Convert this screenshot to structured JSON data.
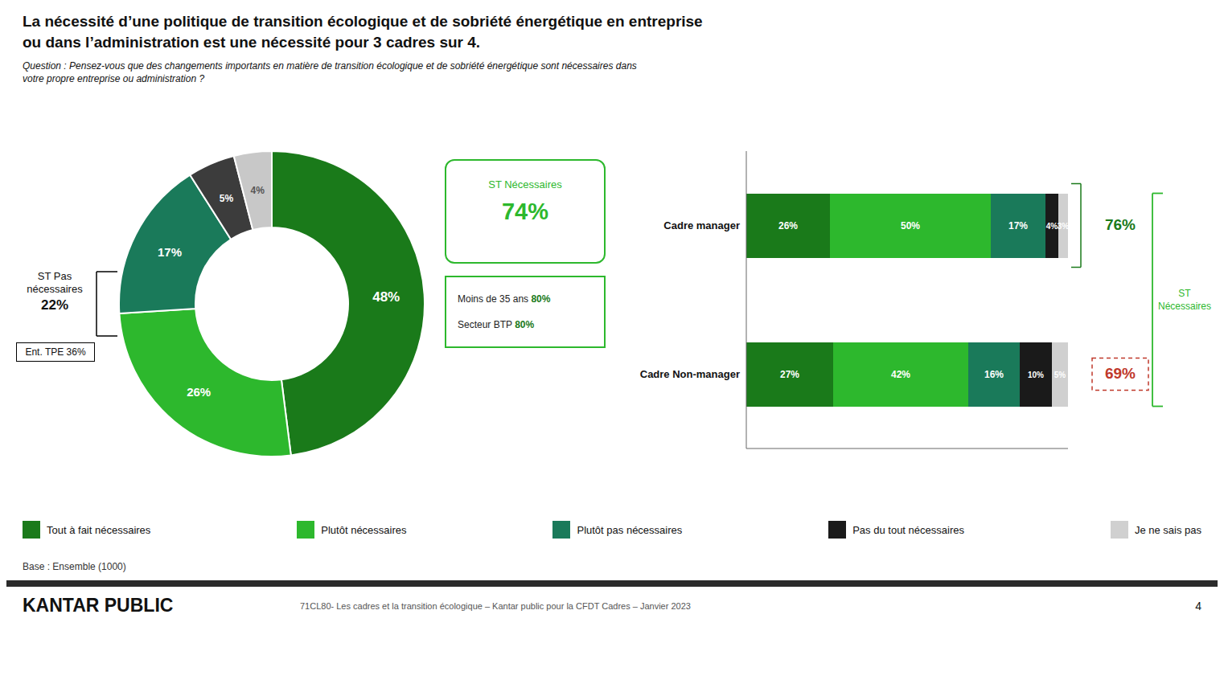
{
  "chart_data": [
    {
      "type": "pie",
      "title": "La nécessité d’une politique de transition écologique et de sobriété énergétique en entreprise\nou dans l’administration est une nécessité pour 3 cadres sur 4.",
      "subtitle": "Question : Pensez-vous que des changements importants en matière de transition écologique et de sobriété énergétique sont nécessaires dans\nvotre propre entreprise ou administration ?",
      "categories": [
        "Tout à fait nécessaires",
        "Plutôt nécessaires",
        "Plutôt pas nécessaires",
        "Pas du tout nécessaires",
        "Je ne sais pas"
      ],
      "values": [
        48,
        26,
        17,
        5,
        4
      ],
      "colors": [
        "#1a7a1a",
        "#2db82d",
        "#1a7a5a",
        "#3c3c3c",
        "#c8c8c8"
      ],
      "data_labels": true,
      "value_labels": [
        "48%",
        "26%",
        "17%",
        "5%",
        "4%"
      ],
      "annotations": [
        {
          "text": "ST Pas\nnécessaires"
        },
        {
          "text": "22%"
        },
        {
          "text": "Ent. TPE 36%"
        },
        {
          "text": "ST Nécessaires",
          "color": "#2db82d"
        },
        {
          "text": "74%",
          "color": "#2db82d"
        },
        {
          "text": "Moins de 35 ans"
        },
        {
          "text": "80%",
          "color": "#1a7a1a"
        },
        {
          "text": "Secteur BTP"
        },
        {
          "text": "80%",
          "color": "#1a7a1a"
        }
      ]
    },
    {
      "type": "bar",
      "orientation": "horizontal",
      "stacked": true,
      "categories": [
        "Cadre manager",
        "Cadre Non-manager"
      ],
      "series": [
        {
          "name": "Tout à fait nécessaires",
          "color": "#1a7a1a",
          "values": [
            26,
            27
          ],
          "value_labels": [
            "26%",
            "27%"
          ]
        },
        {
          "name": "Plutôt nécessaires",
          "color": "#2db82d",
          "values": [
            50,
            42
          ],
          "value_labels": [
            "50%",
            "42%"
          ]
        },
        {
          "name": "Plutôt pas nécessaires",
          "color": "#1a7a5a",
          "values": [
            17,
            16
          ],
          "value_labels": [
            "17%",
            "16%"
          ]
        },
        {
          "name": "Pas du tout nécessaires",
          "color": "#1a1a1a",
          "values": [
            4,
            10
          ],
          "value_labels": [
            "4%",
            "10%"
          ]
        },
        {
          "name": "Je ne sais pas",
          "color": "#d0d0d0",
          "values": [
            3,
            5
          ],
          "value_labels": [
            "3%",
            "5%"
          ]
        }
      ],
      "xlim": [
        0,
        100
      ],
      "tick_labels": false,
      "data_labels": true,
      "legend": "bottom",
      "annotations": [
        {
          "text": "76%",
          "color": "#1a7a1a"
        },
        {
          "text": "69%",
          "color": "#c0392b"
        },
        {
          "text": "ST\nNécessaires",
          "color": "#2db82d"
        },
        {
          "text": "Base : Ensemble (1000)"
        },
        {
          "text": "KANTAR PUBLIC"
        },
        {
          "text": "71CL80- Les cadres et la transition écologique – Kantar public pour la CFDT Cadres – Janvier 2023"
        },
        {
          "text": "4"
        }
      ]
    }
  ]
}
